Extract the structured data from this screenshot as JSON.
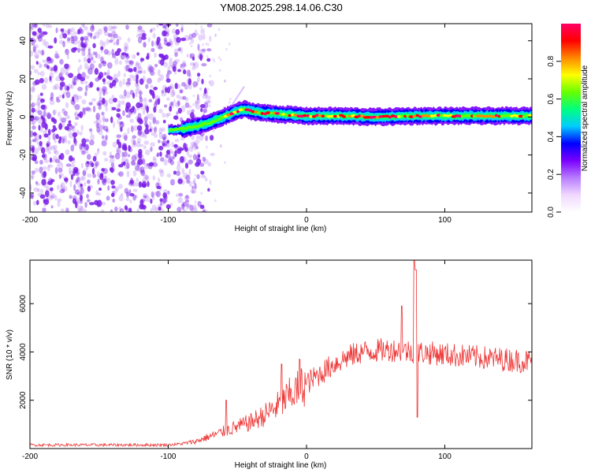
{
  "title": "YM08.2025.298.14.06.C30",
  "colors": {
    "snr_line": "#ee3333",
    "scatter_noise": "#7a1ee8",
    "frame": "#000000"
  },
  "chart_data": [
    {
      "type": "heatmap",
      "name": "spectrogram",
      "xlabel": "Height of straight line (km)",
      "ylabel": "Frequency (Hz)",
      "xlim": [
        -200,
        163
      ],
      "ylim": [
        -50,
        49
      ],
      "xticks": [
        "-200",
        "-100",
        "0",
        "100"
      ],
      "xtick_values": [
        -200,
        -100,
        0,
        100
      ],
      "yticks": [
        "-40",
        "-20",
        "0",
        "20",
        "40"
      ],
      "ytick_values": [
        -40,
        -20,
        0,
        20,
        40
      ],
      "track": {
        "x": [
          -100,
          -90,
          -80,
          -70,
          -60,
          -50,
          -45,
          -40,
          -30,
          -20,
          -10,
          0,
          20,
          50,
          80,
          110,
          140,
          163
        ],
        "y": [
          -7,
          -6.5,
          -5,
          -3,
          0,
          3,
          4,
          3,
          2,
          1.5,
          1,
          0.5,
          0.5,
          0,
          0.5,
          0.5,
          0.5,
          0.5
        ]
      },
      "noise_region_x": [
        -200,
        -85
      ],
      "colorbar": {
        "label": "Normalized spectral amplitude",
        "ticks": [
          "0.0",
          "0.2",
          "0.4",
          "0.6",
          "0.8"
        ],
        "tick_values": [
          0,
          0.2,
          0.4,
          0.6,
          0.8
        ],
        "range": [
          0,
          1
        ],
        "colors": [
          "#ffffff",
          "#f0d8ff",
          "#b77cff",
          "#7a00ff",
          "#0000ff",
          "#00ccff",
          "#00ff80",
          "#66ff00",
          "#ffff00",
          "#ff8800",
          "#ff0000",
          "#ff0066"
        ]
      }
    },
    {
      "type": "line",
      "name": "snr",
      "xlabel": "Height of straight line (km)",
      "ylabel": "SNR (10 * v/v)",
      "xlim": [
        -200,
        163
      ],
      "ylim": [
        0,
        7800
      ],
      "xticks": [
        "-200",
        "-100",
        "0",
        "100"
      ],
      "xtick_values": [
        -200,
        -100,
        0,
        100
      ],
      "yticks": [
        "2000",
        "4000",
        "6000"
      ],
      "ytick_values": [
        2000,
        4000,
        6000
      ],
      "trend": {
        "x": [
          -200,
          -100,
          -90,
          -80,
          -70,
          -60,
          -50,
          -40,
          -30,
          -20,
          -10,
          0,
          10,
          20,
          30,
          40,
          60,
          80,
          100,
          120,
          140,
          163
        ],
        "y": [
          150,
          150,
          200,
          300,
          500,
          700,
          900,
          1100,
          1400,
          1800,
          2300,
          2700,
          3100,
          3500,
          3800,
          4000,
          4100,
          4000,
          3900,
          3800,
          3700,
          3600
        ]
      },
      "spikes": [
        {
          "x": -58,
          "y": 2000
        },
        {
          "x": -18,
          "y": 3500
        },
        {
          "x": -5,
          "y": 3700
        },
        {
          "x": 78,
          "y": 7800
        },
        {
          "x": 79,
          "y": 7400
        },
        {
          "x": 80,
          "y": 1300
        },
        {
          "x": 69,
          "y": 5900
        }
      ]
    }
  ]
}
